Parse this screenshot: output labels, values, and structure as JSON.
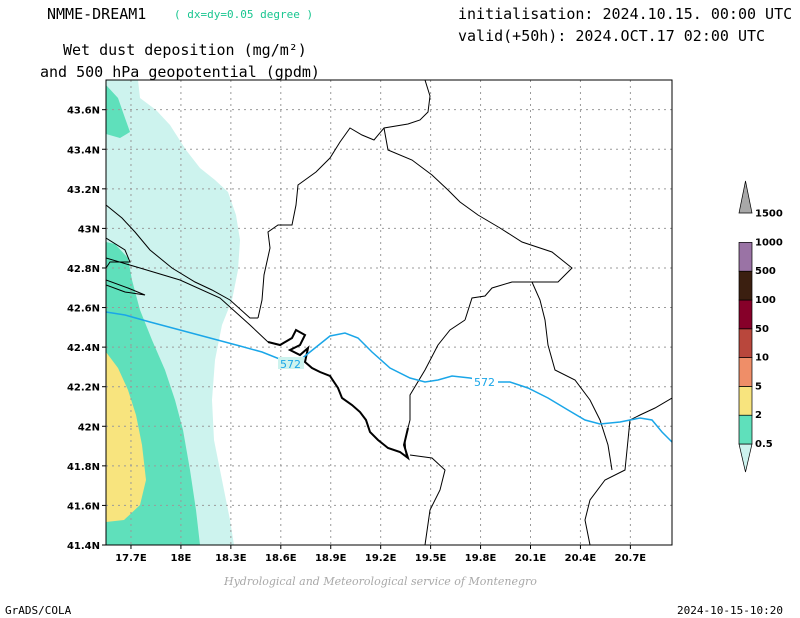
{
  "header": {
    "model": "NMME-DREAM1",
    "resolution": "( dx=dy=0.05 degree )",
    "init": "initialisation: 2024.10.15. 00:00 UTC",
    "valid": "valid(+50h): 2024.OCT.17 02:00 UTC",
    "variable_line1": "Wet dust deposition (mg/m²)",
    "variable_line2": "and 500 hPa geopotential (gpdm)"
  },
  "map": {
    "lat_ticks": [
      "41.4N",
      "41.6N",
      "41.8N",
      "42N",
      "42.2N",
      "42.4N",
      "42.6N",
      "42.8N",
      "43N",
      "43.2N",
      "43.4N",
      "43.6N"
    ],
    "lat_values": [
      41.4,
      41.6,
      41.8,
      42.0,
      42.2,
      42.4,
      42.6,
      42.8,
      43.0,
      43.2,
      43.4,
      43.6
    ],
    "lon_ticks": [
      "17.7E",
      "18E",
      "18.3E",
      "18.6E",
      "18.9E",
      "19.2E",
      "19.5E",
      "19.8E",
      "20.1E",
      "20.4E",
      "20.7E"
    ],
    "lon_values": [
      17.7,
      18.0,
      18.3,
      18.6,
      18.9,
      19.2,
      19.5,
      19.8,
      20.1,
      20.4,
      20.7
    ],
    "lon_range": [
      17.55,
      20.95
    ],
    "lat_range": [
      41.4,
      43.75
    ],
    "contour_labels": [
      "572",
      "572"
    ]
  },
  "legend": {
    "levels": [
      "0.5",
      "2",
      "5",
      "10",
      "50",
      "100",
      "500",
      "1000",
      "1500"
    ],
    "colors": [
      "#cdf3ee",
      "#5fe0bb",
      "#f8e47e",
      "#ef8e68",
      "#b9473c",
      "#860029",
      "#3b1f10",
      "#9a73a5",
      "#a8a8a8"
    ]
  },
  "credit": "Hydrological and Meteorological service of Montenegro",
  "footer": {
    "left": "GrADS/COLA",
    "right": "2024-10-15-10:20"
  }
}
